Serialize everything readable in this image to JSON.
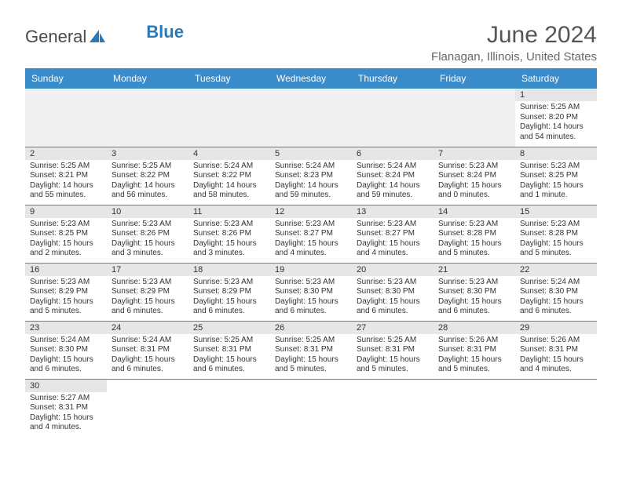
{
  "brand": {
    "general": "General",
    "blue": "Blue"
  },
  "title": "June 2024",
  "subtitle": "Flanagan, Illinois, United States",
  "colors": {
    "header_bg": "#3a8bc9",
    "header_text": "#ffffff",
    "daynum_bg": "#e6e6e6",
    "row_divider": "#3a8bc9",
    "logo_blue": "#2a7ab9",
    "title_color": "#555555",
    "subtitle_color": "#666666"
  },
  "week_headers": [
    "Sunday",
    "Monday",
    "Tuesday",
    "Wednesday",
    "Thursday",
    "Friday",
    "Saturday"
  ],
  "grid": [
    [
      null,
      null,
      null,
      null,
      null,
      null,
      {
        "n": "1",
        "sr": "Sunrise: 5:25 AM",
        "ss": "Sunset: 8:20 PM",
        "d1": "Daylight: 14 hours",
        "d2": "and 54 minutes."
      }
    ],
    [
      {
        "n": "2",
        "sr": "Sunrise: 5:25 AM",
        "ss": "Sunset: 8:21 PM",
        "d1": "Daylight: 14 hours",
        "d2": "and 55 minutes."
      },
      {
        "n": "3",
        "sr": "Sunrise: 5:25 AM",
        "ss": "Sunset: 8:22 PM",
        "d1": "Daylight: 14 hours",
        "d2": "and 56 minutes."
      },
      {
        "n": "4",
        "sr": "Sunrise: 5:24 AM",
        "ss": "Sunset: 8:22 PM",
        "d1": "Daylight: 14 hours",
        "d2": "and 58 minutes."
      },
      {
        "n": "5",
        "sr": "Sunrise: 5:24 AM",
        "ss": "Sunset: 8:23 PM",
        "d1": "Daylight: 14 hours",
        "d2": "and 59 minutes."
      },
      {
        "n": "6",
        "sr": "Sunrise: 5:24 AM",
        "ss": "Sunset: 8:24 PM",
        "d1": "Daylight: 14 hours",
        "d2": "and 59 minutes."
      },
      {
        "n": "7",
        "sr": "Sunrise: 5:23 AM",
        "ss": "Sunset: 8:24 PM",
        "d1": "Daylight: 15 hours",
        "d2": "and 0 minutes."
      },
      {
        "n": "8",
        "sr": "Sunrise: 5:23 AM",
        "ss": "Sunset: 8:25 PM",
        "d1": "Daylight: 15 hours",
        "d2": "and 1 minute."
      }
    ],
    [
      {
        "n": "9",
        "sr": "Sunrise: 5:23 AM",
        "ss": "Sunset: 8:25 PM",
        "d1": "Daylight: 15 hours",
        "d2": "and 2 minutes."
      },
      {
        "n": "10",
        "sr": "Sunrise: 5:23 AM",
        "ss": "Sunset: 8:26 PM",
        "d1": "Daylight: 15 hours",
        "d2": "and 3 minutes."
      },
      {
        "n": "11",
        "sr": "Sunrise: 5:23 AM",
        "ss": "Sunset: 8:26 PM",
        "d1": "Daylight: 15 hours",
        "d2": "and 3 minutes."
      },
      {
        "n": "12",
        "sr": "Sunrise: 5:23 AM",
        "ss": "Sunset: 8:27 PM",
        "d1": "Daylight: 15 hours",
        "d2": "and 4 minutes."
      },
      {
        "n": "13",
        "sr": "Sunrise: 5:23 AM",
        "ss": "Sunset: 8:27 PM",
        "d1": "Daylight: 15 hours",
        "d2": "and 4 minutes."
      },
      {
        "n": "14",
        "sr": "Sunrise: 5:23 AM",
        "ss": "Sunset: 8:28 PM",
        "d1": "Daylight: 15 hours",
        "d2": "and 5 minutes."
      },
      {
        "n": "15",
        "sr": "Sunrise: 5:23 AM",
        "ss": "Sunset: 8:28 PM",
        "d1": "Daylight: 15 hours",
        "d2": "and 5 minutes."
      }
    ],
    [
      {
        "n": "16",
        "sr": "Sunrise: 5:23 AM",
        "ss": "Sunset: 8:29 PM",
        "d1": "Daylight: 15 hours",
        "d2": "and 5 minutes."
      },
      {
        "n": "17",
        "sr": "Sunrise: 5:23 AM",
        "ss": "Sunset: 8:29 PM",
        "d1": "Daylight: 15 hours",
        "d2": "and 6 minutes."
      },
      {
        "n": "18",
        "sr": "Sunrise: 5:23 AM",
        "ss": "Sunset: 8:29 PM",
        "d1": "Daylight: 15 hours",
        "d2": "and 6 minutes."
      },
      {
        "n": "19",
        "sr": "Sunrise: 5:23 AM",
        "ss": "Sunset: 8:30 PM",
        "d1": "Daylight: 15 hours",
        "d2": "and 6 minutes."
      },
      {
        "n": "20",
        "sr": "Sunrise: 5:23 AM",
        "ss": "Sunset: 8:30 PM",
        "d1": "Daylight: 15 hours",
        "d2": "and 6 minutes."
      },
      {
        "n": "21",
        "sr": "Sunrise: 5:23 AM",
        "ss": "Sunset: 8:30 PM",
        "d1": "Daylight: 15 hours",
        "d2": "and 6 minutes."
      },
      {
        "n": "22",
        "sr": "Sunrise: 5:24 AM",
        "ss": "Sunset: 8:30 PM",
        "d1": "Daylight: 15 hours",
        "d2": "and 6 minutes."
      }
    ],
    [
      {
        "n": "23",
        "sr": "Sunrise: 5:24 AM",
        "ss": "Sunset: 8:30 PM",
        "d1": "Daylight: 15 hours",
        "d2": "and 6 minutes."
      },
      {
        "n": "24",
        "sr": "Sunrise: 5:24 AM",
        "ss": "Sunset: 8:31 PM",
        "d1": "Daylight: 15 hours",
        "d2": "and 6 minutes."
      },
      {
        "n": "25",
        "sr": "Sunrise: 5:25 AM",
        "ss": "Sunset: 8:31 PM",
        "d1": "Daylight: 15 hours",
        "d2": "and 6 minutes."
      },
      {
        "n": "26",
        "sr": "Sunrise: 5:25 AM",
        "ss": "Sunset: 8:31 PM",
        "d1": "Daylight: 15 hours",
        "d2": "and 5 minutes."
      },
      {
        "n": "27",
        "sr": "Sunrise: 5:25 AM",
        "ss": "Sunset: 8:31 PM",
        "d1": "Daylight: 15 hours",
        "d2": "and 5 minutes."
      },
      {
        "n": "28",
        "sr": "Sunrise: 5:26 AM",
        "ss": "Sunset: 8:31 PM",
        "d1": "Daylight: 15 hours",
        "d2": "and 5 minutes."
      },
      {
        "n": "29",
        "sr": "Sunrise: 5:26 AM",
        "ss": "Sunset: 8:31 PM",
        "d1": "Daylight: 15 hours",
        "d2": "and 4 minutes."
      }
    ],
    [
      {
        "n": "30",
        "sr": "Sunrise: 5:27 AM",
        "ss": "Sunset: 8:31 PM",
        "d1": "Daylight: 15 hours",
        "d2": "and 4 minutes."
      },
      null,
      null,
      null,
      null,
      null,
      null
    ]
  ]
}
